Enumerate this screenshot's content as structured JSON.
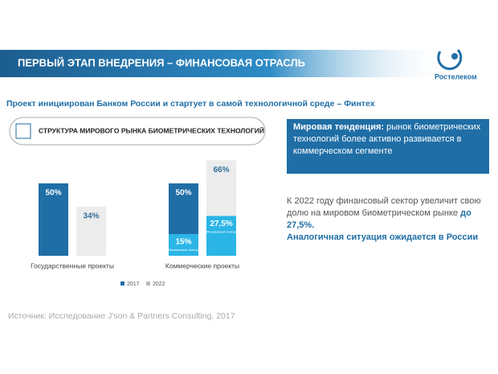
{
  "header": {
    "title": "ПЕРВЫЙ ЭТАП ВНЕДРЕНИЯ – ФИНАНСОВАЯ ОТРАСЛЬ",
    "logo": "Ростелеком"
  },
  "subtitle": "Проект инициирован Банком России и стартует в самой технологичной среде – Финтех",
  "trend": {
    "title": "Мировая тенденция:",
    "text": "рынок биометрических технологий более активно развивается в коммерческом сегменте"
  },
  "note": {
    "text": "К 2022 году финансовый сектор увеличит свою долю на мировом биометрическом рынке",
    "highlight": "до 27,5%.",
    "conclusion": "Аналогичная ситуация ожидается в России"
  },
  "source": "Источник: Исследование J'son & Partners Consulting, 2017",
  "chart_data": {
    "type": "bar",
    "title": "СТРУКТУРА МИРОВОГО РЫНКА БИОМЕТРИЧЕСКИХ ТЕХНОЛОГИЙ",
    "categories": [
      "Государственные проекты",
      "Коммерческие проекты"
    ],
    "series": [
      {
        "name": "2017",
        "color": "#1f6ea6",
        "label_color": "#ffffff",
        "values": [
          50,
          50
        ],
        "value_labels": [
          "50%",
          "50%"
        ]
      },
      {
        "name": "2022",
        "color": "#ececec",
        "label_color": "#2f6f98",
        "values": [
          34,
          66
        ],
        "value_labels": [
          "34%",
          "66%"
        ]
      }
    ],
    "overlays": [
      {
        "name": "Финансовый сектор",
        "color": "#2bb5e6",
        "values": [
          null,
          15
        ],
        "value_labels": [
          null,
          "15%"
        ]
      },
      {
        "name": "Финансовый сектор",
        "color": "#2bb5e6",
        "values": [
          null,
          27.5
        ],
        "value_labels": [
          null,
          "27,5%"
        ]
      }
    ],
    "legend": "bottom"
  }
}
